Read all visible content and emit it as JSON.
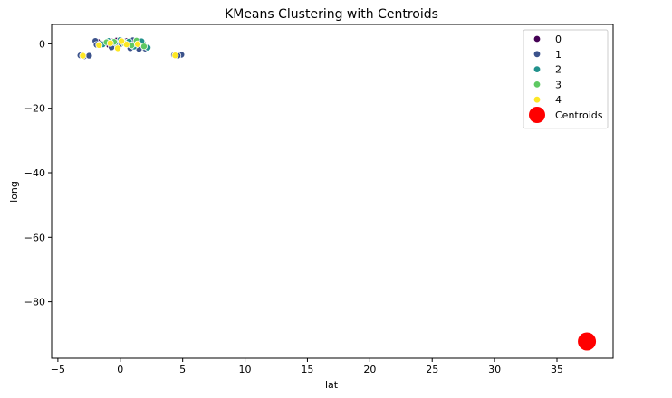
{
  "chart_data": {
    "type": "scatter",
    "title": "KMeans Clustering with Centroids",
    "xlabel": "lat",
    "ylabel": "long",
    "xlim": [
      -5.5,
      39.5
    ],
    "ylim": [
      -97.5,
      6.0
    ],
    "xticks": [
      -5,
      0,
      5,
      10,
      15,
      20,
      25,
      30,
      35
    ],
    "yticks": [
      0,
      -20,
      -40,
      -60,
      -80
    ],
    "grid": false,
    "legend_position": "top-right",
    "clusters": [
      {
        "label": "0",
        "color": "#440154",
        "points": [
          [
            -1.8,
            0.6
          ],
          [
            -1.2,
            0.3
          ],
          [
            -0.6,
            0.8
          ],
          [
            -0.3,
            1.0
          ],
          [
            0.2,
            0.4
          ],
          [
            0.6,
            -0.2
          ],
          [
            0.9,
            0.6
          ],
          [
            1.2,
            0.2
          ],
          [
            -0.9,
            -0.4
          ],
          [
            1.6,
            0.7
          ],
          [
            -0.2,
            -1.2
          ],
          [
            0.5,
            0.9
          ]
        ]
      },
      {
        "label": "1",
        "color": "#3b528b",
        "points": [
          [
            -3.2,
            -3.6
          ],
          [
            -2.9,
            -3.9
          ],
          [
            -2.5,
            -3.7
          ],
          [
            -2.0,
            0.9
          ],
          [
            -1.5,
            0.1
          ],
          [
            -0.7,
            -1.1
          ],
          [
            -0.1,
            -0.6
          ],
          [
            0.8,
            -1.4
          ],
          [
            1.5,
            -1.6
          ],
          [
            1.8,
            0.1
          ],
          [
            2.0,
            -1.5
          ],
          [
            4.3,
            -3.5
          ],
          [
            4.9,
            -3.4
          ],
          [
            4.6,
            -3.7
          ],
          [
            -1.9,
            -0.3
          ],
          [
            1.0,
            1.1
          ]
        ]
      },
      {
        "label": "2",
        "color": "#21918c",
        "points": [
          [
            -1.4,
            -0.2
          ],
          [
            -0.9,
            0.9
          ],
          [
            0.4,
            0.5
          ],
          [
            1.1,
            -0.9
          ],
          [
            1.7,
            0.8
          ],
          [
            2.2,
            -1.2
          ],
          [
            0.0,
            1.2
          ],
          [
            0.7,
            0.7
          ],
          [
            -0.4,
            0.3
          ]
        ]
      },
      {
        "label": "3",
        "color": "#5ec962",
        "points": [
          [
            -0.5,
            0.6
          ],
          [
            0.3,
            0.2
          ],
          [
            1.3,
            1.0
          ],
          [
            0.9,
            -0.5
          ],
          [
            -1.1,
            0.5
          ],
          [
            1.9,
            -0.8
          ]
        ]
      },
      {
        "label": "4",
        "color": "#fde725",
        "points": [
          [
            -3.0,
            -3.7
          ],
          [
            -1.7,
            -0.4
          ],
          [
            -0.2,
            -1.4
          ],
          [
            0.5,
            -0.2
          ],
          [
            4.4,
            -3.6
          ],
          [
            1.4,
            -0.1
          ],
          [
            -0.8,
            0.2
          ],
          [
            0.1,
            0.8
          ]
        ]
      }
    ],
    "centroids": {
      "label": "Centroids",
      "color": "#ff0000",
      "points": [
        [
          37.4,
          -92.3
        ]
      ]
    }
  }
}
